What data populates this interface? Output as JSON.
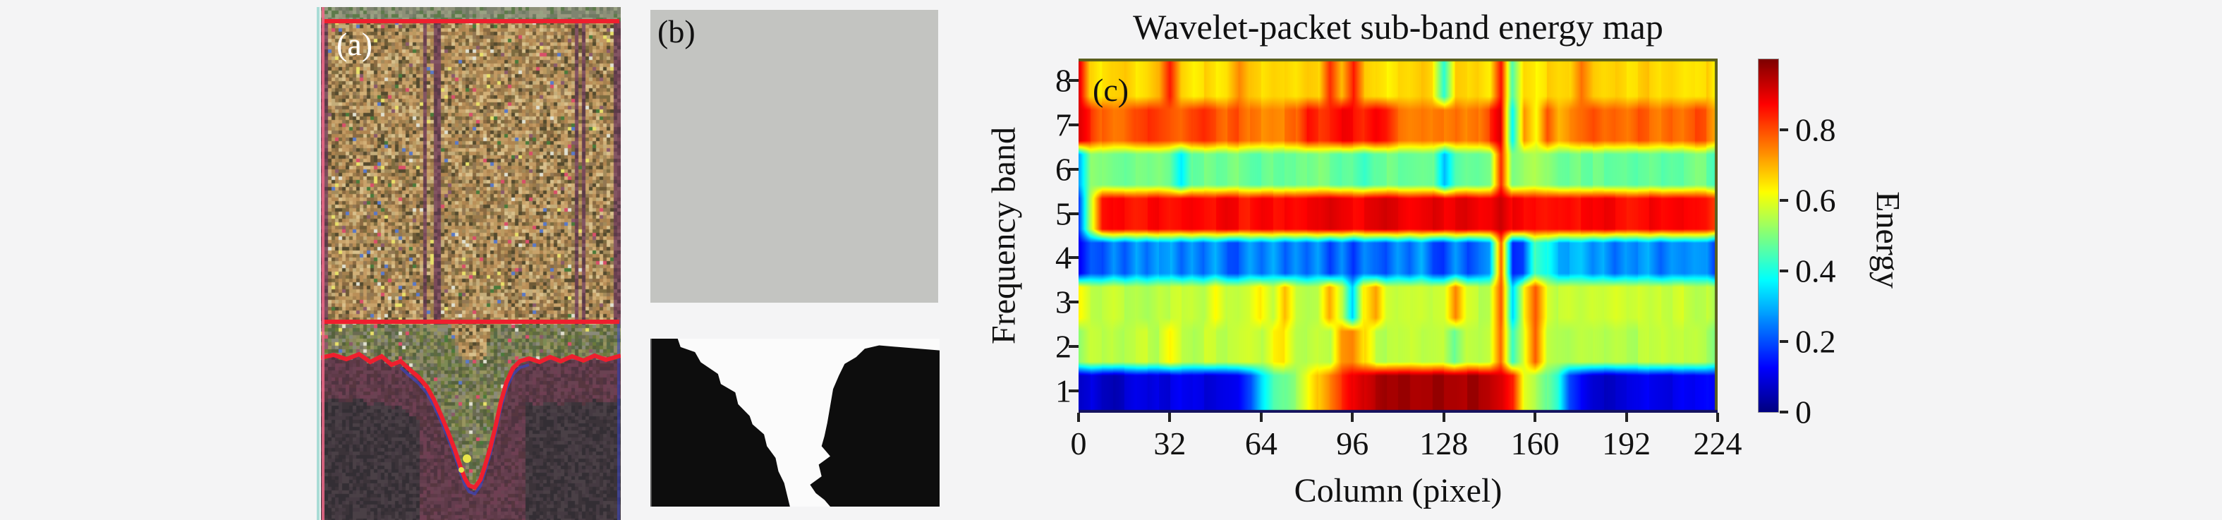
{
  "panels": {
    "a": {
      "label": "(a)",
      "line_color": "#ee1f2e",
      "blue_accent": "#3946c8",
      "edge_pink": "#f06a8a",
      "edge_cyan": "#a9dcd6",
      "yellow_speck": "#e8e34a",
      "top_line_y": 20,
      "mid_line_y": 446,
      "contour": [
        [
          0,
          497
        ],
        [
          18,
          493
        ],
        [
          36,
          499
        ],
        [
          54,
          492
        ],
        [
          70,
          503
        ],
        [
          86,
          495
        ],
        [
          100,
          507
        ],
        [
          113,
          502
        ],
        [
          126,
          514
        ],
        [
          138,
          524
        ],
        [
          150,
          538
        ],
        [
          160,
          556
        ],
        [
          170,
          578
        ],
        [
          180,
          602
        ],
        [
          190,
          628
        ],
        [
          198,
          652
        ],
        [
          204,
          668
        ],
        [
          210,
          678
        ],
        [
          218,
          681
        ],
        [
          226,
          670
        ],
        [
          232,
          652
        ],
        [
          240,
          625
        ],
        [
          248,
          592
        ],
        [
          255,
          560
        ],
        [
          263,
          532
        ],
        [
          272,
          512
        ],
        [
          282,
          502
        ],
        [
          295,
          498
        ],
        [
          310,
          503
        ],
        [
          325,
          496
        ],
        [
          340,
          502
        ],
        [
          356,
          495
        ],
        [
          372,
          501
        ],
        [
          388,
          494
        ],
        [
          404,
          500
        ],
        [
          425,
          494
        ]
      ],
      "palettes": {
        "strip": [
          "#8d9078",
          "#7f8470",
          "#98987f",
          "#6f7a62",
          "#9aa283",
          "#5d7a4a"
        ],
        "upper": [
          "#b08550",
          "#c39a63",
          "#9a7a4a",
          "#d2b077",
          "#8a6a42",
          "#ba8f58",
          "#6e5a36",
          "#c9a36b",
          "#7d6b3f",
          "#a5814f",
          "#544a2e",
          "#d8c08c",
          "#927752",
          "#bb9a60",
          "#a38a5a",
          "#c4ad7a"
        ],
        "speck": [
          "#d94f6a",
          "#e8e06a",
          "#5a79c8",
          "#4a7a3a",
          "#8a5a6a",
          "#e0e0d0"
        ],
        "plumcol": [
          "#7a4a5a",
          "#6a4050",
          "#835563",
          "#5a3a48"
        ],
        "inner": [
          "#7a7a4a",
          "#6b7a3a",
          "#8a8a5a",
          "#5f6a40",
          "#98955f",
          "#6a6a52",
          "#586a46",
          "#7d8a55",
          "#8f8a68",
          "#55603c",
          "#777766",
          "#8a8a7a"
        ],
        "outer": [
          "#5e3a48",
          "#6a4252",
          "#56363f",
          "#6f3f53",
          "#4f3340",
          "#643d4e"
        ],
        "dark": [
          "#3b3339",
          "#453a42",
          "#332e34",
          "#4a4046"
        ]
      }
    },
    "b": {
      "label": "(b)",
      "gray_fill": "#c3c4c1",
      "mask_black": "#0d0d0d",
      "mask_white": "#fbfbfb",
      "mask_left_region": [
        [
          0,
          0
        ],
        [
          9,
          0
        ],
        [
          10,
          5
        ],
        [
          15,
          8
        ],
        [
          17,
          14
        ],
        [
          23,
          21
        ],
        [
          24,
          27
        ],
        [
          29,
          32
        ],
        [
          30,
          39
        ],
        [
          34,
          46
        ],
        [
          35,
          51
        ],
        [
          39,
          57
        ],
        [
          40,
          64
        ],
        [
          43,
          71
        ],
        [
          44,
          79
        ],
        [
          46,
          86
        ],
        [
          47,
          93
        ],
        [
          48,
          100
        ],
        [
          0,
          100
        ]
      ],
      "mask_right_region": [
        [
          100,
          7
        ],
        [
          79,
          4
        ],
        [
          74,
          6
        ],
        [
          71,
          11
        ],
        [
          67,
          15
        ],
        [
          65,
          22
        ],
        [
          63,
          30
        ],
        [
          62,
          40
        ],
        [
          61,
          50
        ],
        [
          60,
          58
        ],
        [
          59,
          64
        ],
        [
          62,
          70
        ],
        [
          58,
          75
        ],
        [
          59,
          82
        ],
        [
          55,
          87
        ],
        [
          57,
          92
        ],
        [
          60,
          96
        ],
        [
          62,
          100
        ],
        [
          100,
          100
        ]
      ]
    },
    "c": {
      "label": "(c)"
    }
  },
  "chart_data": {
    "type": "heatmap",
    "title": "Wavelet-packet sub-band energy map",
    "xlabel": "Column (pixel)",
    "ylabel": "Frequency band",
    "x_ticks": [
      0,
      32,
      64,
      96,
      128,
      160,
      192,
      224
    ],
    "x_max": 224,
    "y_bands": [
      8,
      7,
      6,
      5,
      4,
      3,
      2,
      1
    ],
    "colorbar": {
      "label": "Energy",
      "ticks": [
        0,
        0.2,
        0.4,
        0.6,
        0.8
      ],
      "min": 0,
      "max": 1,
      "colormap": "jet"
    },
    "sample_step_columns": 4,
    "grid_note": "rows ordered top band 8 to bottom band 1; values sampled every 4 columns from 0 to 224",
    "rows": [
      {
        "band": 8,
        "values": [
          0.93,
          0.68,
          0.64,
          0.66,
          0.67,
          0.64,
          0.66,
          0.7,
          0.86,
          0.68,
          0.65,
          0.67,
          0.64,
          0.66,
          0.74,
          0.67,
          0.65,
          0.67,
          0.66,
          0.64,
          0.67,
          0.66,
          0.84,
          0.7,
          0.85,
          0.68,
          0.66,
          0.64,
          0.67,
          0.66,
          0.68,
          0.65,
          0.42,
          0.67,
          0.66,
          0.68,
          0.65,
          0.88,
          0.45,
          0.66,
          0.64,
          0.67,
          0.65,
          0.66,
          0.76,
          0.68,
          0.66,
          0.67,
          0.65,
          0.66,
          0.68,
          0.66,
          0.67,
          0.65,
          0.66,
          0.67,
          0.6
        ]
      },
      {
        "band": 7,
        "values": [
          0.9,
          0.84,
          0.78,
          0.75,
          0.76,
          0.8,
          0.82,
          0.8,
          0.78,
          0.76,
          0.8,
          0.83,
          0.8,
          0.77,
          0.8,
          0.76,
          0.74,
          0.76,
          0.75,
          0.77,
          0.86,
          0.83,
          0.85,
          0.88,
          0.87,
          0.84,
          0.88,
          0.85,
          0.78,
          0.76,
          0.77,
          0.75,
          0.76,
          0.78,
          0.74,
          0.76,
          0.82,
          0.9,
          0.38,
          0.72,
          0.62,
          0.8,
          0.7,
          0.74,
          0.77,
          0.8,
          0.76,
          0.78,
          0.76,
          0.8,
          0.78,
          0.76,
          0.79,
          0.77,
          0.8,
          0.78,
          0.7
        ]
      },
      {
        "band": 6,
        "values": [
          0.3,
          0.52,
          0.5,
          0.48,
          0.47,
          0.49,
          0.48,
          0.5,
          0.47,
          0.35,
          0.48,
          0.49,
          0.47,
          0.48,
          0.5,
          0.48,
          0.47,
          0.49,
          0.48,
          0.47,
          0.48,
          0.5,
          0.48,
          0.46,
          0.47,
          0.43,
          0.48,
          0.49,
          0.47,
          0.48,
          0.49,
          0.48,
          0.3,
          0.45,
          0.48,
          0.47,
          0.49,
          0.85,
          0.5,
          0.53,
          0.55,
          0.52,
          0.48,
          0.47,
          0.49,
          0.48,
          0.47,
          0.48,
          0.49,
          0.47,
          0.48,
          0.46,
          0.48,
          0.47,
          0.49,
          0.48,
          0.45
        ]
      },
      {
        "band": 5,
        "values": [
          0.18,
          0.55,
          0.85,
          0.87,
          0.88,
          0.86,
          0.87,
          0.88,
          0.86,
          0.87,
          0.88,
          0.87,
          0.86,
          0.88,
          0.87,
          0.86,
          0.88,
          0.87,
          0.88,
          0.86,
          0.87,
          0.88,
          0.9,
          0.88,
          0.87,
          0.88,
          0.89,
          0.91,
          0.9,
          0.88,
          0.89,
          0.9,
          0.88,
          0.89,
          0.9,
          0.88,
          0.89,
          0.94,
          0.88,
          0.86,
          0.87,
          0.86,
          0.87,
          0.88,
          0.86,
          0.87,
          0.88,
          0.87,
          0.86,
          0.87,
          0.88,
          0.86,
          0.87,
          0.88,
          0.87,
          0.86,
          0.8
        ]
      },
      {
        "band": 4,
        "values": [
          0.12,
          0.22,
          0.2,
          0.28,
          0.21,
          0.29,
          0.22,
          0.28,
          0.3,
          0.21,
          0.28,
          0.22,
          0.29,
          0.21,
          0.2,
          0.28,
          0.22,
          0.29,
          0.21,
          0.28,
          0.22,
          0.29,
          0.19,
          0.28,
          0.18,
          0.28,
          0.24,
          0.2,
          0.28,
          0.22,
          0.3,
          0.19,
          0.17,
          0.27,
          0.19,
          0.24,
          0.28,
          0.78,
          0.17,
          0.2,
          0.45,
          0.4,
          0.3,
          0.29,
          0.31,
          0.24,
          0.29,
          0.22,
          0.28,
          0.25,
          0.29,
          0.22,
          0.28,
          0.26,
          0.29,
          0.28,
          0.14
        ]
      },
      {
        "band": 3,
        "values": [
          0.63,
          0.57,
          0.56,
          0.58,
          0.56,
          0.57,
          0.55,
          0.58,
          0.56,
          0.57,
          0.58,
          0.56,
          0.64,
          0.57,
          0.56,
          0.58,
          0.64,
          0.57,
          0.7,
          0.58,
          0.56,
          0.57,
          0.72,
          0.58,
          0.32,
          0.64,
          0.73,
          0.58,
          0.56,
          0.57,
          0.58,
          0.56,
          0.57,
          0.74,
          0.58,
          0.56,
          0.57,
          0.8,
          0.34,
          0.62,
          0.78,
          0.6,
          0.56,
          0.57,
          0.55,
          0.57,
          0.56,
          0.58,
          0.56,
          0.57,
          0.55,
          0.57,
          0.56,
          0.58,
          0.56,
          0.57,
          0.52
        ]
      },
      {
        "band": 2,
        "values": [
          0.5,
          0.56,
          0.55,
          0.57,
          0.55,
          0.56,
          0.57,
          0.55,
          0.62,
          0.56,
          0.55,
          0.57,
          0.56,
          0.55,
          0.56,
          0.57,
          0.55,
          0.62,
          0.64,
          0.56,
          0.55,
          0.57,
          0.56,
          0.74,
          0.76,
          0.66,
          0.57,
          0.55,
          0.56,
          0.57,
          0.55,
          0.56,
          0.57,
          0.48,
          0.56,
          0.55,
          0.57,
          0.78,
          0.44,
          0.6,
          0.79,
          0.58,
          0.56,
          0.55,
          0.57,
          0.56,
          0.55,
          0.57,
          0.56,
          0.55,
          0.56,
          0.57,
          0.55,
          0.56,
          0.57,
          0.55,
          0.5
        ]
      },
      {
        "band": 1,
        "values": [
          0.08,
          0.1,
          0.06,
          0.05,
          0.07,
          0.09,
          0.08,
          0.1,
          0.09,
          0.11,
          0.1,
          0.09,
          0.1,
          0.11,
          0.12,
          0.2,
          0.35,
          0.45,
          0.48,
          0.52,
          0.6,
          0.68,
          0.75,
          0.82,
          0.88,
          0.92,
          0.95,
          0.97,
          0.97,
          0.97,
          0.97,
          0.97,
          0.97,
          0.97,
          0.96,
          0.96,
          0.95,
          0.92,
          0.85,
          0.6,
          0.55,
          0.48,
          0.4,
          0.18,
          0.12,
          0.08,
          0.07,
          0.08,
          0.09,
          0.1,
          0.12,
          0.11,
          0.1,
          0.12,
          0.11,
          0.12,
          0.1
        ]
      }
    ]
  }
}
